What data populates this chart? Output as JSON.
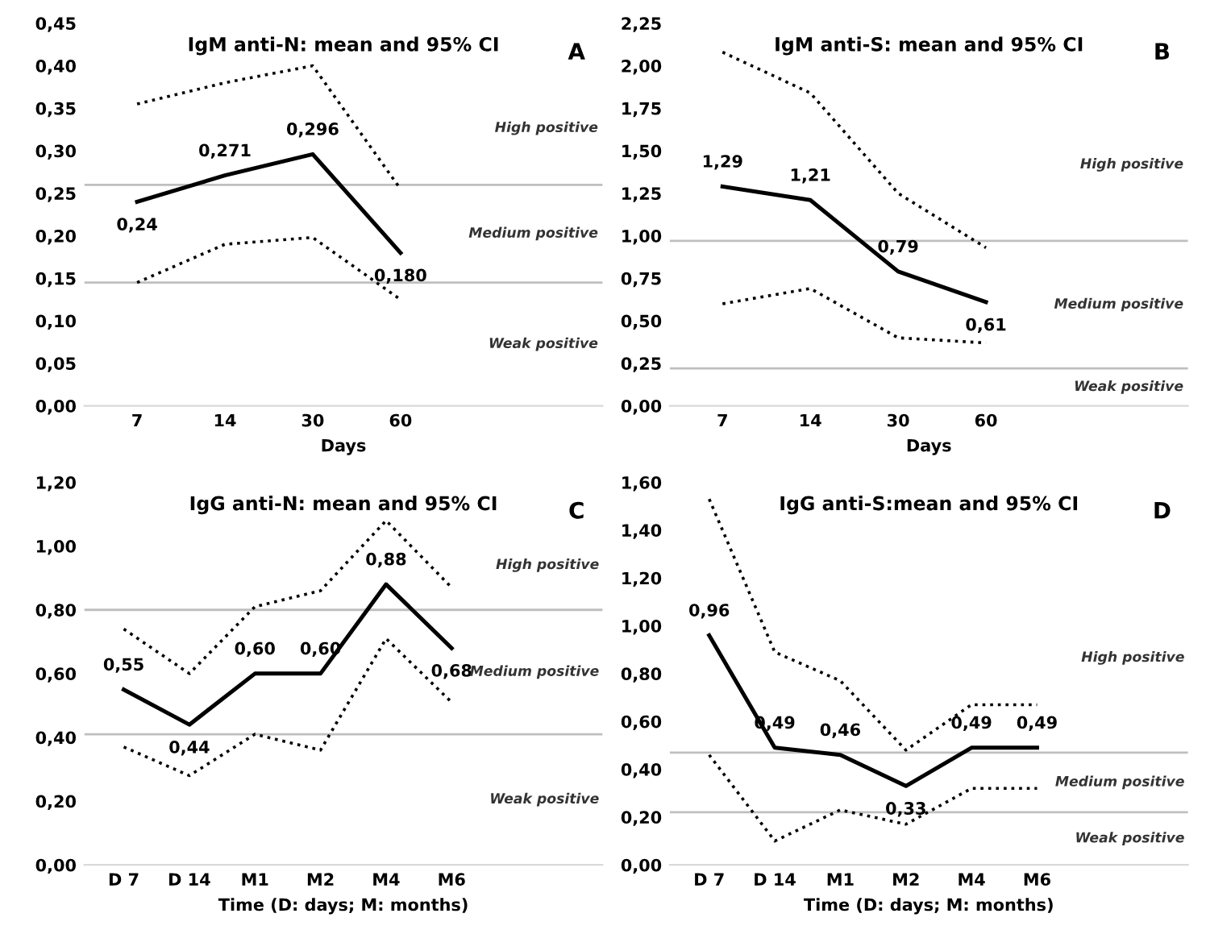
{
  "chart_data": [
    {
      "type": "line",
      "title": "IgM anti-N: mean and 95% CI",
      "xlabel": "Days",
      "categories": [
        "7",
        "14",
        "30",
        "60"
      ],
      "series": [
        {
          "color": "#000000",
          "line_style": "solid",
          "values": [
            0.24,
            0.271,
            0.296,
            0.18
          ],
          "value_labels": [
            "0,24",
            "0,271",
            "0,296",
            "0,180"
          ]
        },
        {
          "color": "#000000",
          "line_style": "dotted",
          "values": [
            0.355,
            0.38,
            0.4,
            0.255
          ]
        },
        {
          "color": "#000000",
          "line_style": "dotted",
          "values": [
            0.145,
            0.19,
            0.198,
            0.125
          ]
        }
      ],
      "ylim": [
        0,
        0.45
      ],
      "yticks": [
        {
          "value": 0,
          "label": "0,00"
        },
        {
          "value": 0.05,
          "label": "0,05"
        },
        {
          "value": 0.1,
          "label": "0,10"
        },
        {
          "value": 0.15,
          "label": "0,15"
        },
        {
          "value": 0.2,
          "label": "0,20"
        },
        {
          "value": 0.25,
          "label": "0,25"
        },
        {
          "value": 0.3,
          "label": "0,30"
        },
        {
          "value": 0.35,
          "label": "0,35"
        },
        {
          "value": 0.4,
          "label": "0,40"
        },
        {
          "value": 0.45,
          "label": "0,45"
        }
      ],
      "ref_lines": [
        {
          "axis": "y",
          "value": 0.26,
          "color": "#bfbfbf"
        },
        {
          "axis": "y",
          "value": 0.145,
          "color": "#bfbfbf"
        }
      ],
      "annotations": [
        "A",
        "High positive",
        "Medium positive",
        "Weak positive"
      ],
      "grid": false,
      "legend": false
    },
    {
      "type": "line",
      "title": "IgM anti-S: mean and 95% CI",
      "xlabel": "Days",
      "categories": [
        "7",
        "14",
        "30",
        "60"
      ],
      "series": [
        {
          "color": "#000000",
          "line_style": "solid",
          "values": [
            1.29,
            1.21,
            0.79,
            0.61
          ],
          "value_labels": [
            "1,29",
            "1,21",
            "0,79",
            "0,61"
          ]
        },
        {
          "color": "#000000",
          "line_style": "dotted",
          "values": [
            2.08,
            1.84,
            1.25,
            0.93
          ]
        },
        {
          "color": "#000000",
          "line_style": "dotted",
          "values": [
            0.6,
            0.69,
            0.4,
            0.37
          ]
        }
      ],
      "ylim": [
        0,
        2.25
      ],
      "yticks": [
        {
          "value": 0,
          "label": "0,00"
        },
        {
          "value": 0.25,
          "label": "0,25"
        },
        {
          "value": 0.5,
          "label": "0,50"
        },
        {
          "value": 0.75,
          "label": "0,75"
        },
        {
          "value": 1.0,
          "label": "1,00"
        },
        {
          "value": 1.25,
          "label": "1,25"
        },
        {
          "value": 1.5,
          "label": "1,50"
        },
        {
          "value": 1.75,
          "label": "1,75"
        },
        {
          "value": 2.0,
          "label": "2,00"
        },
        {
          "value": 2.25,
          "label": "2,25"
        }
      ],
      "ref_lines": [
        {
          "axis": "y",
          "value": 0.97,
          "color": "#bfbfbf"
        },
        {
          "axis": "y",
          "value": 0.22,
          "color": "#bfbfbf"
        }
      ],
      "annotations": [
        "B",
        "High positive",
        "Medium positive",
        "Weak positive"
      ],
      "grid": false,
      "legend": false
    },
    {
      "type": "line",
      "title": "IgG anti-N: mean and 95% CI",
      "xlabel": "Time (D: days; M: months)",
      "categories": [
        "D 7",
        "D 14",
        "M1",
        "M2",
        "M4",
        "M6"
      ],
      "series": [
        {
          "color": "#000000",
          "line_style": "solid",
          "values": [
            0.55,
            0.44,
            0.6,
            0.6,
            0.88,
            0.68
          ],
          "value_labels": [
            "0,55",
            "0,44",
            "0,60",
            "0,60",
            "0,88",
            "0,68"
          ]
        },
        {
          "color": "#000000",
          "line_style": "dotted",
          "values": [
            0.74,
            0.6,
            0.81,
            0.86,
            1.08,
            0.87
          ]
        },
        {
          "color": "#000000",
          "line_style": "dotted",
          "values": [
            0.37,
            0.28,
            0.41,
            0.36,
            0.71,
            0.51
          ]
        }
      ],
      "ylim": [
        0,
        1.2
      ],
      "yticks": [
        {
          "value": 0,
          "label": "0,00"
        },
        {
          "value": 0.2,
          "label": "0,20"
        },
        {
          "value": 0.4,
          "label": "0,40"
        },
        {
          "value": 0.6,
          "label": "0,60"
        },
        {
          "value": 0.8,
          "label": "0,80"
        },
        {
          "value": 1.0,
          "label": "1,00"
        },
        {
          "value": 1.2,
          "label": "1,20"
        }
      ],
      "ref_lines": [
        {
          "axis": "y",
          "value": 0.8,
          "color": "#bfbfbf"
        },
        {
          "axis": "y",
          "value": 0.41,
          "color": "#bfbfbf"
        }
      ],
      "annotations": [
        "C",
        "High positive",
        "Medium positive",
        "Weak positive"
      ],
      "grid": false,
      "legend": false
    },
    {
      "type": "line",
      "title": "IgG anti-S:mean and 95% CI",
      "xlabel": "Time (D: days; M: months)",
      "categories": [
        "D 7",
        "D 14",
        "M1",
        "M2",
        "M4",
        "M6"
      ],
      "series": [
        {
          "color": "#000000",
          "line_style": "solid",
          "values": [
            0.96,
            0.49,
            0.46,
            0.33,
            0.49,
            0.49
          ],
          "value_labels": [
            "0,96",
            "0,49",
            "0,46",
            "0,33",
            "0,49",
            "0,49"
          ]
        },
        {
          "color": "#000000",
          "line_style": "dotted",
          "values": [
            1.53,
            0.89,
            0.77,
            0.48,
            0.67,
            0.67
          ]
        },
        {
          "color": "#000000",
          "line_style": "dotted",
          "values": [
            0.46,
            0.1,
            0.23,
            0.17,
            0.32,
            0.32
          ]
        }
      ],
      "ylim": [
        0,
        1.6
      ],
      "yticks": [
        {
          "value": 0,
          "label": "0,00"
        },
        {
          "value": 0.2,
          "label": "0,20"
        },
        {
          "value": 0.4,
          "label": "0,40"
        },
        {
          "value": 0.6,
          "label": "0,60"
        },
        {
          "value": 0.8,
          "label": "0,80"
        },
        {
          "value": 1.0,
          "label": "1,00"
        },
        {
          "value": 1.2,
          "label": "1,20"
        },
        {
          "value": 1.4,
          "label": "1,40"
        },
        {
          "value": 1.6,
          "label": "1,60"
        }
      ],
      "ref_lines": [
        {
          "axis": "y",
          "value": 0.47,
          "color": "#bfbfbf"
        },
        {
          "axis": "y",
          "value": 0.22,
          "color": "#bfbfbf"
        }
      ],
      "annotations": [
        "D",
        "High positive",
        "Medium positive",
        "Weak positive"
      ],
      "grid": false,
      "legend": false
    }
  ]
}
